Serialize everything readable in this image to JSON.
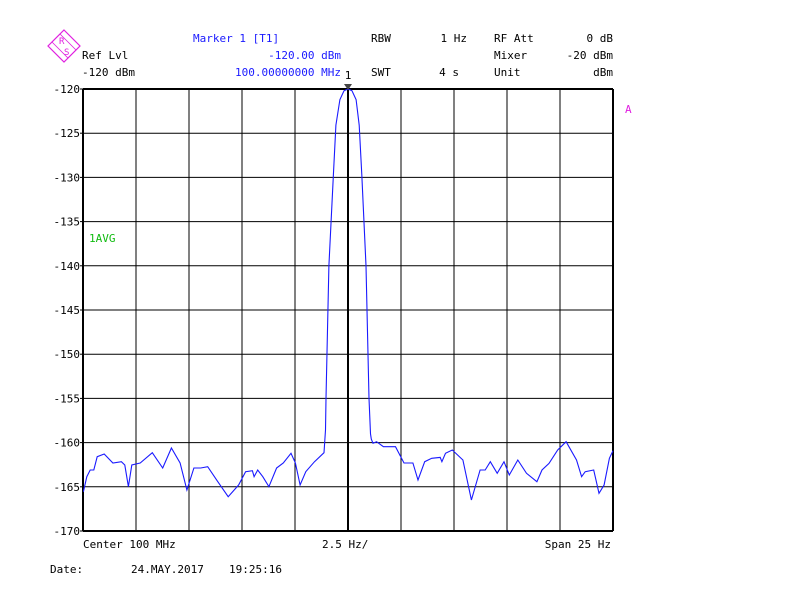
{
  "header": {
    "marker_title": "Marker 1 [T1]",
    "marker_level": "-120.00 dBm",
    "marker_freq": "100.00000000 MHz",
    "ref_lvl_label": "Ref Lvl",
    "ref_lvl_value": "-120 dBm",
    "rbw_label": "RBW",
    "rbw_value": "1 Hz",
    "swt_label": "SWT",
    "swt_value": "4 s",
    "rf_att_label": "RF Att",
    "rf_att_value": "0 dB",
    "mixer_label": "Mixer",
    "mixer_value": "-20 dBm",
    "unit_label": "Unit",
    "unit_value": "dBm",
    "logo_text": "R&S"
  },
  "footer": {
    "center": "Center 100 MHz",
    "per_div": "2.5 Hz/",
    "span": "Span 25 Hz",
    "date_label": "Date:",
    "date": "24.MAY.2017",
    "time": "19:25:16"
  },
  "colors": {
    "trace": "#1a1aff",
    "grid": "#000000",
    "avg_label": "#11bb11",
    "logo": "#e020e0"
  },
  "chart_data": {
    "type": "line",
    "xlabel": "",
    "ylabel": "",
    "x_unit": "Hz",
    "xlim": [
      99999987.5,
      100000012.5
    ],
    "ylim": [
      -170,
      -120
    ],
    "y_ticks": [
      "-120",
      "-125",
      "-130",
      "-135",
      "-140",
      "-145",
      "-150",
      "-155",
      "-160",
      "-165",
      "-170"
    ],
    "grid": true,
    "trace_label": "1AVG",
    "screen_label": "A",
    "marker": {
      "label": "1",
      "x": 100000000,
      "y": -120
    },
    "series": [
      {
        "x": [
          99999987.52,
          99999987.68,
          99999987.84,
          99999988.01,
          99999988.17,
          99999988.5,
          99999988.91,
          99999989.31,
          99999989.47,
          99999989.64,
          99999989.8,
          99999990.2,
          99999990.77,
          99999991.26,
          99999991.67,
          99999992.08,
          99999992.4,
          99999992.73,
          99999993.05,
          99999993.38,
          99999993.86,
          99999994.35,
          99999994.84,
          99999995.17,
          99999995.49,
          99999995.57,
          99999995.74,
          99999995.98,
          99999996.27,
          99999996.63,
          99999996.95,
          99999997.31,
          99999997.52,
          99999997.74,
          99999998.01,
          99999998.42,
          99999998.87,
          99999998.94,
          99999998.96,
          99999999.1,
          99999999.31,
          99999999.43,
          99999999.62,
          99999999.81,
          100000000.0,
          100000000.19,
          100000000.38,
          100000000.53,
          100000000.65,
          100000000.85,
          100000000.99,
          100000001.06,
          100000001.1,
          100000001.18,
          100000001.35,
          100000001.67,
          100000002.24,
          100000002.64,
          100000003.06,
          100000003.3,
          100000003.62,
          100000003.95,
          100000004.35,
          100000004.43,
          100000004.6,
          100000004.92,
          100000005.42,
          100000005.82,
          100000006.23,
          100000006.47,
          100000006.71,
          100000007.04,
          100000007.36,
          100000007.61,
          100000008.01,
          100000008.42,
          100000008.91,
          100000009.15,
          100000009.48,
          100000009.89,
          100000010.29,
          100000010.78,
          100000011.02,
          100000011.19,
          100000011.59,
          100000011.84,
          100000012.08,
          100000012.33,
          100000012.5
        ],
        "y": [
          -165.55,
          -163.86,
          -163.1,
          -163.1,
          -161.6,
          -161.29,
          -162.31,
          -162.16,
          -162.53,
          -164.99,
          -162.53,
          -162.31,
          -161.14,
          -162.87,
          -160.61,
          -162.31,
          -165.36,
          -162.87,
          -162.87,
          -162.73,
          -164.42,
          -166.12,
          -164.8,
          -163.29,
          -163.18,
          -163.86,
          -163.1,
          -163.86,
          -164.99,
          -162.87,
          -162.31,
          -161.21,
          -162.31,
          -164.8,
          -163.29,
          -162.16,
          -161.14,
          -158.57,
          -155.0,
          -140.0,
          -129.7,
          -124.1,
          -121.2,
          -120.2,
          -120.0,
          -120.2,
          -121.2,
          -124.1,
          -129.7,
          -140.0,
          -155.0,
          -159.0,
          -159.6,
          -160.08,
          -159.9,
          -160.46,
          -160.46,
          -162.31,
          -162.31,
          -164.23,
          -162.16,
          -161.78,
          -161.67,
          -162.16,
          -161.21,
          -160.84,
          -161.97,
          -166.49,
          -163.1,
          -163.1,
          -162.16,
          -163.47,
          -162.16,
          -163.67,
          -161.97,
          -163.47,
          -164.42,
          -163.1,
          -162.35,
          -160.84,
          -159.9,
          -161.97,
          -163.86,
          -163.29,
          -163.1,
          -165.73,
          -164.8,
          -161.78,
          -160.92
        ]
      }
    ]
  }
}
